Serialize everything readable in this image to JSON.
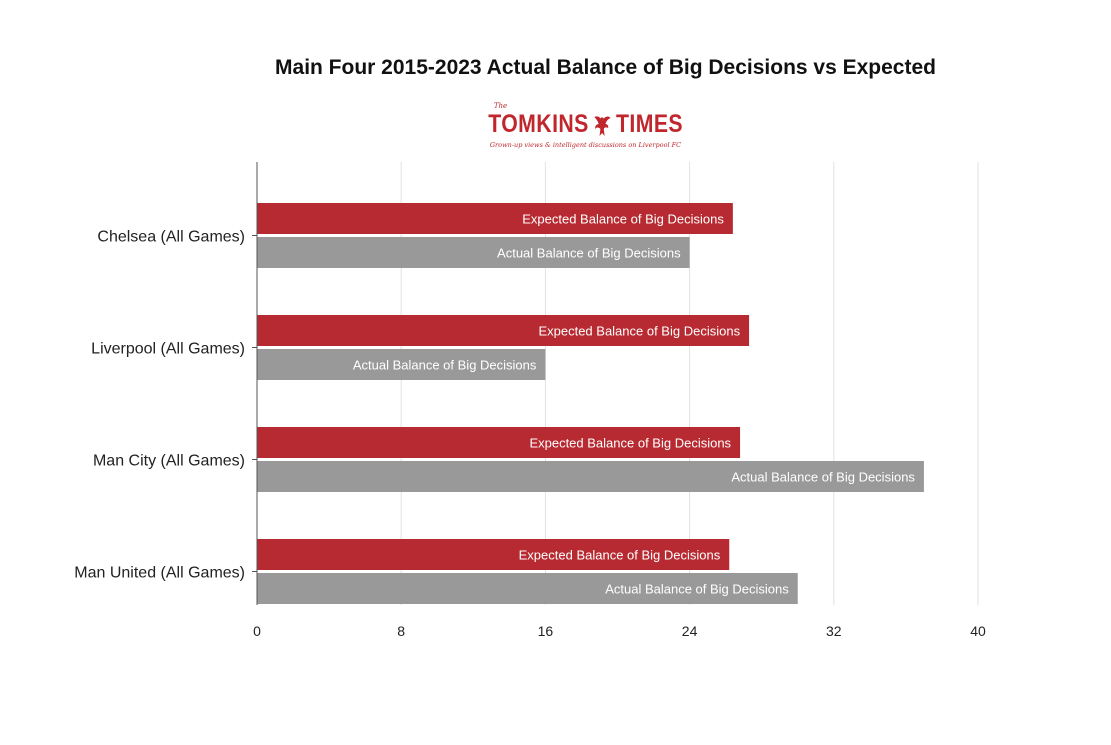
{
  "chart_data": {
    "type": "bar",
    "orientation": "horizontal",
    "title": "Main Four 2015-2023 Actual Balance of Big Decisions vs Expected",
    "categories": [
      "Chelsea (All Games)",
      "Liverpool (All Games)",
      "Man City (All Games)",
      "Man United (All Games)"
    ],
    "series": [
      {
        "name": "Expected Balance of Big Decisions",
        "color": "#b82a31",
        "values": [
          26.4,
          27.3,
          26.8,
          26.2
        ]
      },
      {
        "name": "Actual Balance of Big Decisions",
        "color": "#999999",
        "values": [
          24.0,
          16.0,
          37.0,
          30.0
        ]
      }
    ],
    "xlim": [
      0,
      40
    ],
    "x_ticks": [
      0,
      8,
      16,
      24,
      32,
      40
    ],
    "xlabel": "",
    "ylabel": "",
    "grid": true,
    "legend": "none",
    "data_labels": "series name inside bar end"
  },
  "logo": {
    "top_text": "The",
    "left_text": "TOMKINS",
    "right_text": "TIMES",
    "tagline": "Grown-up views & intelligent discussions on Liverpool FC"
  }
}
